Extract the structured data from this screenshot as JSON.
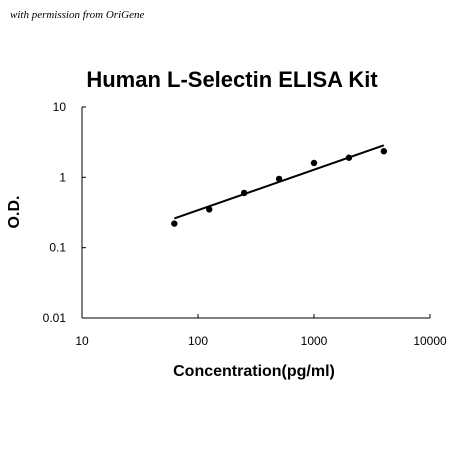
{
  "watermark": "with permission from OriGene",
  "chart_data": {
    "type": "scatter",
    "title": "Human L-Selectin ELISA Kit",
    "xlabel": "Concentration(pg/ml)",
    "ylabel": "O.D.",
    "x_scale": "log",
    "y_scale": "log",
    "xlim": [
      10,
      10000
    ],
    "ylim": [
      0.01,
      10
    ],
    "x_ticks": [
      "10",
      "100",
      "1000",
      "10000"
    ],
    "y_ticks": [
      "0.01",
      "0.1",
      "1",
      "10"
    ],
    "grid": false,
    "legend": "none",
    "series": [
      {
        "x": [
          62.5,
          125,
          250,
          500,
          1000,
          2000,
          4000
        ],
        "y": [
          0.22,
          0.35,
          0.6,
          0.95,
          1.6,
          1.9,
          2.35
        ]
      }
    ],
    "trendline": {
      "type": "power",
      "x": [
        62.5,
        4000
      ],
      "y": [
        0.26,
        2.85
      ]
    }
  }
}
